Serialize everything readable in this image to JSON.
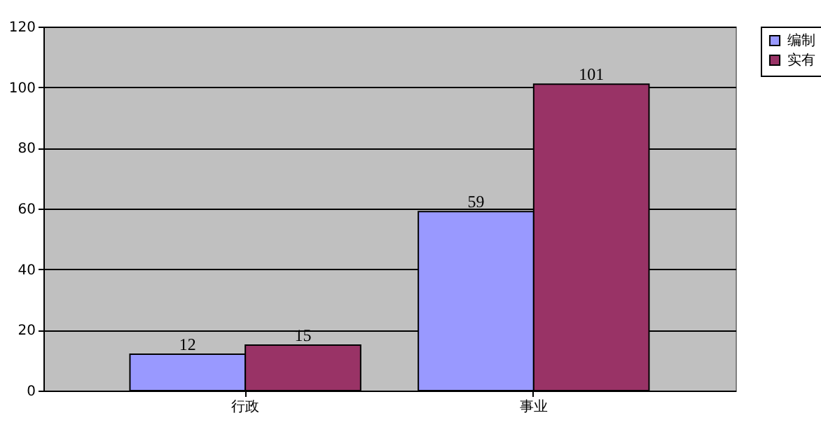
{
  "chart_data": {
    "type": "bar",
    "categories": [
      "行政",
      "事业"
    ],
    "series": [
      {
        "name": "编制",
        "color": "#9999ff",
        "values": [
          12,
          59
        ]
      },
      {
        "name": "实有",
        "color": "#993366",
        "values": [
          15,
          101
        ]
      }
    ],
    "ylim": [
      0,
      120
    ],
    "yticks": [
      0,
      20,
      40,
      60,
      80,
      100,
      120
    ],
    "grid": "y",
    "legend": "right",
    "data_labels": true
  }
}
